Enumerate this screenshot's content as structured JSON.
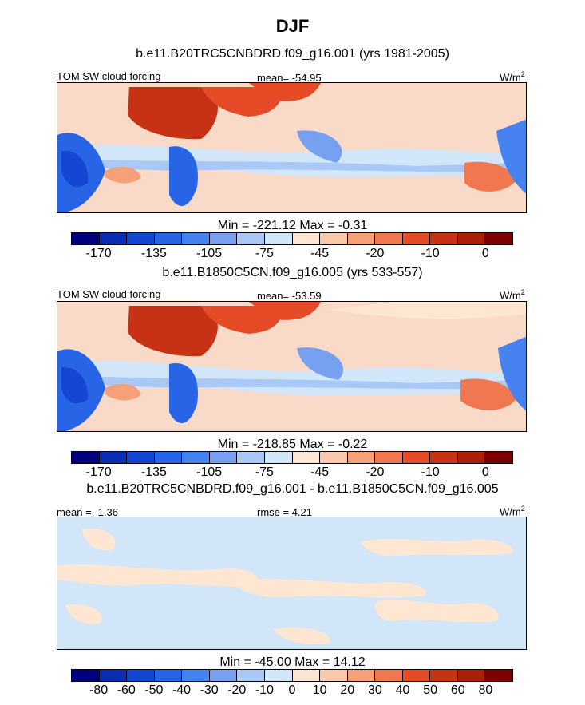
{
  "title": "DJF",
  "panels": [
    {
      "title": "b.e11.B20TRC5CNBDRD.f09_g16.001 (yrs 1981-2005)",
      "left_label": "TOM SW cloud forcing",
      "center_label": "mean= -54.95",
      "units": "W/m",
      "units_sup": "2",
      "minmax": "Min = -221.12 Max =  -0.31"
    },
    {
      "title": "b.e11.B1850C5CN.f09_g16.005 (yrs 533-557)",
      "left_label": "TOM SW cloud forcing",
      "center_label": "mean= -53.59",
      "units": "W/m",
      "units_sup": "2",
      "minmax": "Min = -218.85 Max =  -0.22"
    },
    {
      "title": "b.e11.B20TRC5CNBDRD.f09_g16.001 - b.e11.B1850C5CN.f09_g16.005",
      "left_label": "mean =  -1.36",
      "center_label": "rmse =   4.21",
      "units": "W/m",
      "units_sup": "2",
      "minmax": "Min = -45.00 Max =  14.12"
    }
  ],
  "colorbars": {
    "absolute": {
      "colors": [
        "#00007f",
        "#0a2db4",
        "#1446d2",
        "#2864e6",
        "#4682f0",
        "#78a0f0",
        "#aac8f5",
        "#d2e6fa",
        "#fde6d2",
        "#fac8aa",
        "#f5a078",
        "#f07850",
        "#e64b28",
        "#c83214",
        "#aa1e0a",
        "#7d0000"
      ],
      "ticks": [
        "-170",
        "-135",
        "-105",
        "-75",
        "-45",
        "-20",
        "-10",
        "0"
      ]
    },
    "difference": {
      "colors": [
        "#00007f",
        "#0a2db4",
        "#1446d2",
        "#2864e6",
        "#4682f0",
        "#78a0f0",
        "#aac8f5",
        "#d2e6fa",
        "#fde6d2",
        "#fac8aa",
        "#f5a078",
        "#f07850",
        "#e64b28",
        "#c83214",
        "#aa1e0a",
        "#7d0000"
      ],
      "ticks": [
        "-80",
        "-60",
        "-50",
        "-40",
        "-30",
        "-20",
        "-10",
        "0",
        "10",
        "20",
        "30",
        "40",
        "50",
        "60",
        "80"
      ]
    }
  }
}
